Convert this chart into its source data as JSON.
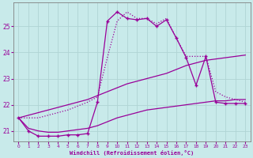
{
  "xlabel": "Windchill (Refroidissement éolien,°C)",
  "background_color": "#c8eaea",
  "grid_color": "#b0d4d4",
  "line_color": "#990099",
  "xlim": [
    -0.5,
    23.5
  ],
  "ylim": [
    20.6,
    25.9
  ],
  "yticks": [
    21,
    22,
    23,
    24,
    25
  ],
  "xticks": [
    0,
    1,
    2,
    3,
    4,
    5,
    6,
    7,
    8,
    9,
    10,
    11,
    12,
    13,
    14,
    15,
    16,
    17,
    18,
    19,
    20,
    21,
    22,
    23
  ],
  "series": [
    {
      "x": [
        0,
        1,
        2,
        3,
        4,
        5,
        6,
        7,
        8,
        9,
        10,
        11,
        12,
        13,
        14,
        15,
        16,
        17,
        18,
        19,
        20,
        21,
        22,
        23
      ],
      "y": [
        21.5,
        21.6,
        21.7,
        21.8,
        21.9,
        22.0,
        22.1,
        22.2,
        22.35,
        22.5,
        22.65,
        22.8,
        22.9,
        23.0,
        23.1,
        23.2,
        23.35,
        23.5,
        23.6,
        23.7,
        23.75,
        23.8,
        23.85,
        23.9
      ],
      "linestyle": "solid",
      "marker": null,
      "linewidth": 0.9
    },
    {
      "x": [
        0,
        1,
        2,
        3,
        4,
        5,
        6,
        7,
        8,
        9,
        10,
        11,
        12,
        13,
        14,
        15,
        16,
        17,
        18,
        19,
        20,
        21,
        22,
        23
      ],
      "y": [
        21.5,
        21.1,
        21.0,
        20.95,
        20.95,
        21.0,
        21.05,
        21.1,
        21.2,
        21.35,
        21.5,
        21.6,
        21.7,
        21.8,
        21.85,
        21.9,
        21.95,
        22.0,
        22.05,
        22.1,
        22.15,
        22.15,
        22.2,
        22.2
      ],
      "linestyle": "solid",
      "marker": null,
      "linewidth": 0.9
    },
    {
      "x": [
        0,
        1,
        2,
        3,
        4,
        5,
        6,
        7,
        8,
        9,
        10,
        11,
        12,
        13,
        14,
        15,
        16,
        17,
        18,
        19,
        20,
        21,
        22,
        23
      ],
      "y": [
        21.5,
        21.0,
        20.8,
        20.8,
        20.8,
        20.85,
        20.85,
        20.9,
        22.1,
        25.2,
        25.55,
        25.3,
        25.25,
        25.3,
        25.0,
        25.25,
        24.55,
        23.8,
        22.75,
        23.85,
        22.1,
        22.05,
        22.05,
        22.05
      ],
      "linestyle": "solid",
      "marker": "+",
      "linewidth": 0.9
    },
    {
      "x": [
        0,
        1,
        2,
        3,
        4,
        5,
        6,
        7,
        8,
        9,
        10,
        11,
        12,
        13,
        14,
        15,
        16,
        17,
        18,
        19,
        20,
        21,
        22,
        23
      ],
      "y": [
        21.5,
        21.5,
        21.5,
        21.6,
        21.7,
        21.8,
        21.95,
        22.1,
        22.3,
        23.8,
        25.2,
        25.55,
        25.3,
        25.3,
        25.1,
        25.3,
        24.55,
        23.85,
        23.85,
        23.85,
        22.5,
        22.3,
        22.2,
        22.1
      ],
      "linestyle": "dotted",
      "marker": null,
      "linewidth": 0.9
    }
  ]
}
